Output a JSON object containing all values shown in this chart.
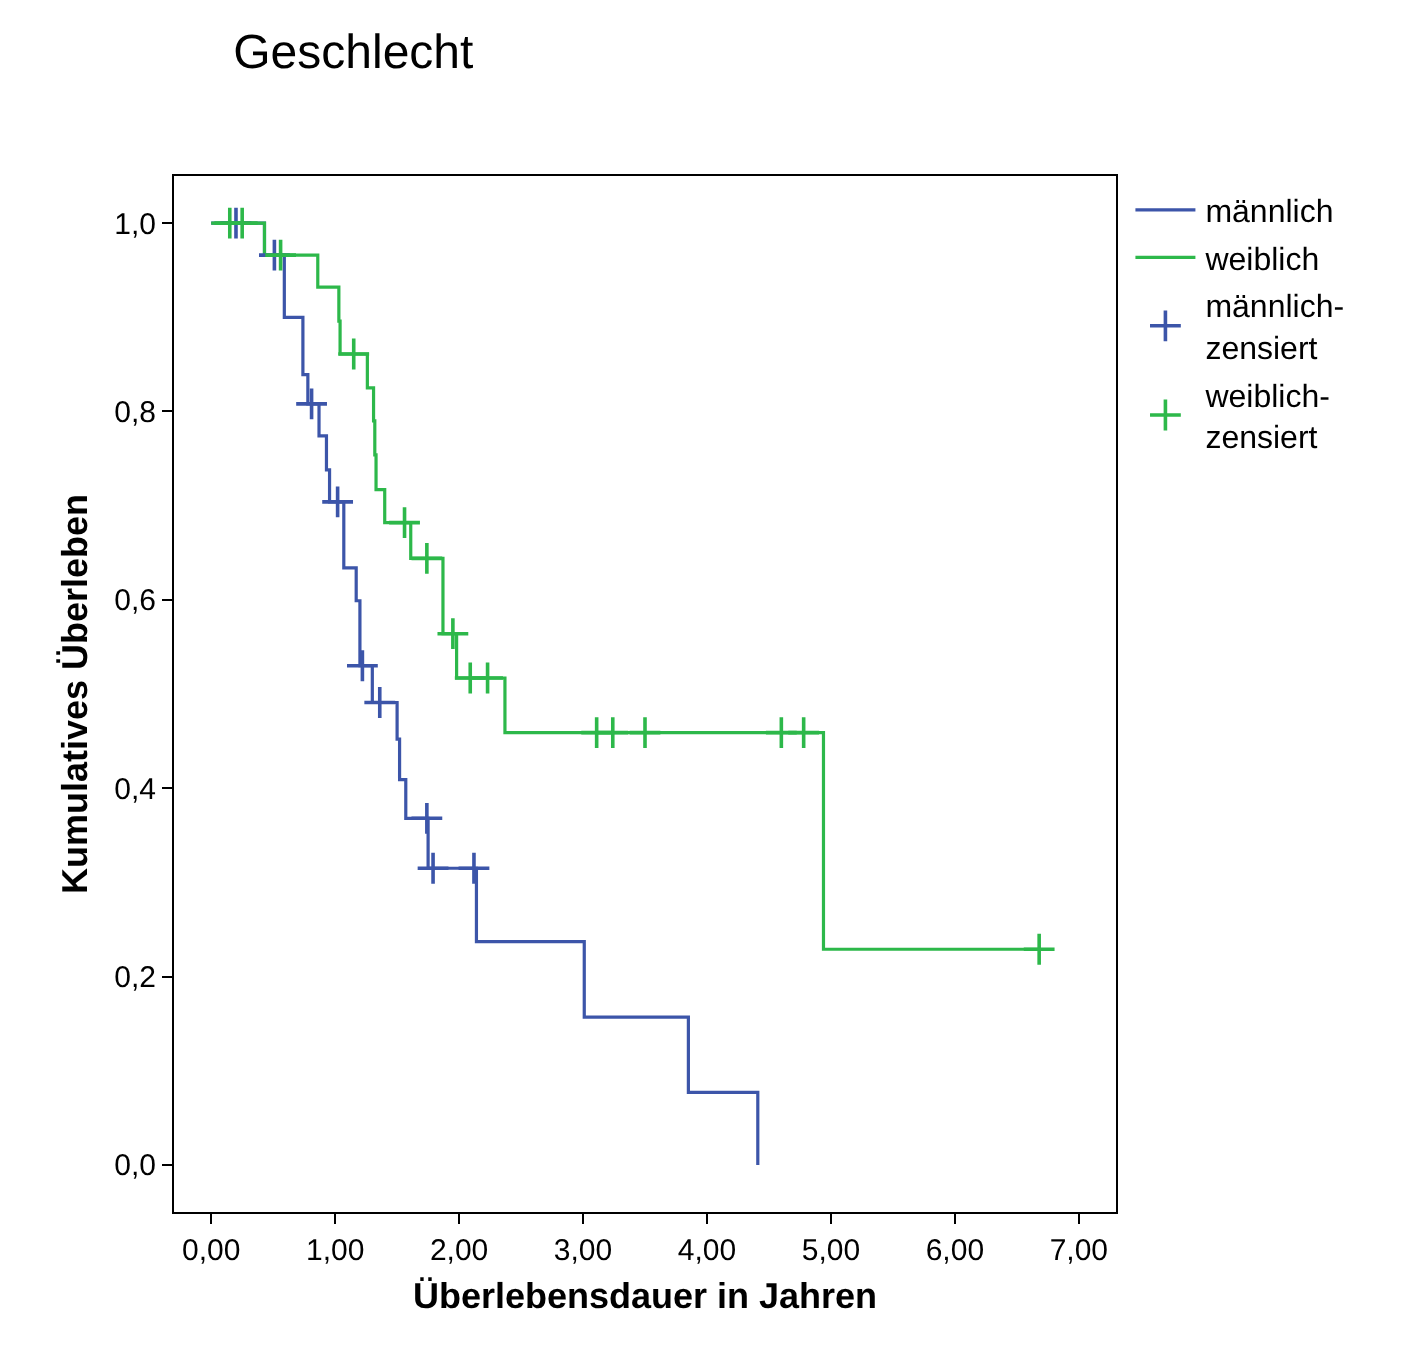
{
  "chart_data": {
    "type": "step",
    "title": "Geschlecht",
    "xlabel": "Überlebensdauer in Jahren",
    "ylabel": "Kumulatives Überleben",
    "xlim": [
      -0.3,
      7.3
    ],
    "ylim": [
      -0.05,
      1.05
    ],
    "xticks": [
      {
        "value": 0,
        "label": "0,00"
      },
      {
        "value": 1,
        "label": "1,00"
      },
      {
        "value": 2,
        "label": "2,00"
      },
      {
        "value": 3,
        "label": "3,00"
      },
      {
        "value": 4,
        "label": "4,00"
      },
      {
        "value": 5,
        "label": "5,00"
      },
      {
        "value": 6,
        "label": "6,00"
      },
      {
        "value": 7,
        "label": "7,00"
      }
    ],
    "yticks": [
      {
        "value": 0,
        "label": "0,0"
      },
      {
        "value": 0.2,
        "label": "0,2"
      },
      {
        "value": 0.4,
        "label": "0,4"
      },
      {
        "value": 0.6,
        "label": "0,6"
      },
      {
        "value": 0.8,
        "label": "0,8"
      },
      {
        "value": 1,
        "label": "1,0"
      }
    ],
    "legend": "right",
    "series": [
      {
        "name": "männlich",
        "color": "#3c55a9",
        "x": [
          0,
          0.43,
          0.59,
          0.74,
          0.78,
          0.87,
          0.93,
          0.955,
          1.07,
          1.17,
          1.2,
          1.3,
          1.5,
          1.52,
          1.57,
          1.75,
          2.14,
          3.01,
          3.85,
          4.41
        ],
        "values": [
          1.0,
          0.966,
          0.9,
          0.839,
          0.808,
          0.774,
          0.738,
          0.704,
          0.634,
          0.599,
          0.53,
          0.491,
          0.452,
          0.409,
          0.368,
          0.315,
          0.237,
          0.157,
          0.077,
          0.0
        ]
      },
      {
        "name": "weiblich",
        "color": "#2db84a",
        "x": [
          0,
          0.43,
          0.86,
          1.03,
          1.04,
          1.26,
          1.31,
          1.32,
          1.33,
          1.4,
          1.61,
          1.87,
          1.98,
          2.37,
          4.94,
          6.68
        ],
        "values": [
          1.0,
          0.966,
          0.932,
          0.896,
          0.861,
          0.825,
          0.79,
          0.754,
          0.717,
          0.682,
          0.644,
          0.564,
          0.517,
          0.459,
          0.229,
          0.229
        ]
      },
      {
        "name": "männlich-zensiert",
        "type": "scatter",
        "marker": "cross",
        "color": "#3c55a9",
        "x": [
          0.2,
          0.51,
          0.81,
          1.02,
          1.22,
          1.36,
          1.74,
          1.79,
          2.12
        ],
        "values": [
          1.0,
          0.966,
          0.808,
          0.704,
          0.53,
          0.491,
          0.368,
          0.315,
          0.315
        ]
      },
      {
        "name": "weiblich-zensiert",
        "type": "scatter",
        "marker": "cross",
        "color": "#2db84a",
        "x": [
          0.15,
          0.25,
          0.56,
          1.15,
          1.56,
          1.74,
          1.95,
          2.09,
          2.23,
          3.11,
          3.24,
          3.5,
          4.6,
          4.78,
          6.68
        ],
        "values": [
          1.0,
          1.0,
          0.966,
          0.861,
          0.682,
          0.644,
          0.564,
          0.517,
          0.517,
          0.459,
          0.459,
          0.459,
          0.459,
          0.459,
          0.229
        ]
      }
    ]
  }
}
